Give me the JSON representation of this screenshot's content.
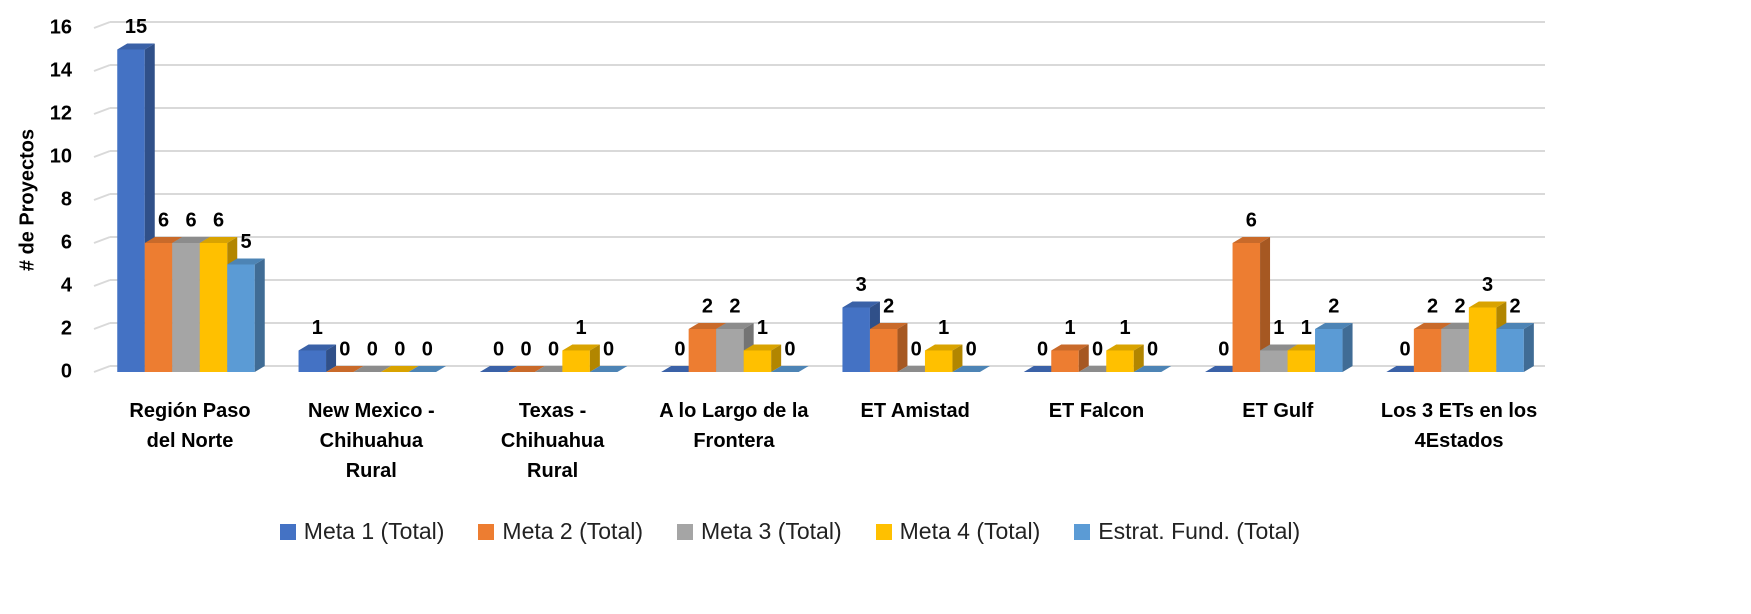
{
  "chart_data": {
    "type": "bar3d",
    "y_axis_label": "# de Proyectos",
    "categories": [
      "Región Paso\ndel Norte",
      "New Mexico -\nChihuahua\nRural",
      "Texas -\nChihuahua\nRural",
      "A lo Largo de la\nFrontera",
      "ET Amistad",
      "ET Falcon",
      "ET Gulf",
      "Los 3 ETs en los\n4Estados"
    ],
    "series": [
      {
        "name": "Meta 1 (Total)",
        "color": "#4472c4",
        "values": [
          15,
          1,
          0,
          0,
          3,
          0,
          0,
          0
        ]
      },
      {
        "name": "Meta 2 (Total)",
        "color": "#ed7d31",
        "values": [
          6,
          0,
          0,
          2,
          2,
          1,
          6,
          2
        ]
      },
      {
        "name": "Meta 3 (Total)",
        "color": "#a5a5a5",
        "values": [
          6,
          0,
          0,
          2,
          0,
          0,
          1,
          2
        ]
      },
      {
        "name": "Meta 4 (Total)",
        "color": "#ffc000",
        "values": [
          6,
          0,
          1,
          1,
          1,
          1,
          1,
          3
        ]
      },
      {
        "name": "Estrat. Fund. (Total)",
        "color": "#5b9bd5",
        "values": [
          5,
          0,
          0,
          0,
          0,
          0,
          2,
          2
        ]
      }
    ],
    "ylim": [
      0,
      16
    ],
    "yticks": [
      0,
      2,
      4,
      6,
      8,
      10,
      12,
      14,
      16
    ],
    "grid": true,
    "legend": "bottom"
  }
}
